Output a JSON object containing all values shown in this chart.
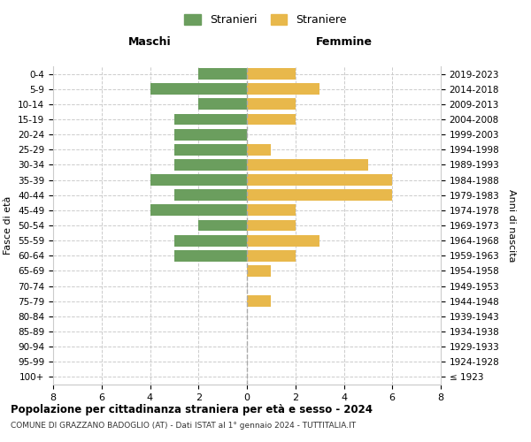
{
  "age_groups": [
    "100+",
    "95-99",
    "90-94",
    "85-89",
    "80-84",
    "75-79",
    "70-74",
    "65-69",
    "60-64",
    "55-59",
    "50-54",
    "45-49",
    "40-44",
    "35-39",
    "30-34",
    "25-29",
    "20-24",
    "15-19",
    "10-14",
    "5-9",
    "0-4"
  ],
  "birth_years": [
    "≤ 1923",
    "1924-1928",
    "1929-1933",
    "1934-1938",
    "1939-1943",
    "1944-1948",
    "1949-1953",
    "1954-1958",
    "1959-1963",
    "1964-1968",
    "1969-1973",
    "1974-1978",
    "1979-1983",
    "1984-1988",
    "1989-1993",
    "1994-1998",
    "1999-2003",
    "2004-2008",
    "2009-2013",
    "2014-2018",
    "2019-2023"
  ],
  "males": [
    0,
    0,
    0,
    0,
    0,
    0,
    0,
    0,
    3,
    3,
    2,
    4,
    3,
    4,
    3,
    3,
    3,
    3,
    2,
    4,
    2
  ],
  "females": [
    0,
    0,
    0,
    0,
    0,
    1,
    0,
    1,
    2,
    3,
    2,
    2,
    6,
    6,
    5,
    1,
    0,
    2,
    2,
    3,
    2
  ],
  "male_color": "#6b9e5e",
  "female_color": "#e8b84b",
  "title": "Popolazione per cittadinanza straniera per età e sesso - 2024",
  "subtitle": "COMUNE DI GRAZZANO BADOGLIO (AT) - Dati ISTAT al 1° gennaio 2024 - TUTTITALIA.IT",
  "xlabel_left": "Maschi",
  "xlabel_right": "Femmine",
  "ylabel_left": "Fasce di età",
  "ylabel_right": "Anni di nascita",
  "legend_male": "Stranieri",
  "legend_female": "Straniere",
  "xlim": 8,
  "background_color": "#ffffff",
  "grid_color": "#cccccc"
}
